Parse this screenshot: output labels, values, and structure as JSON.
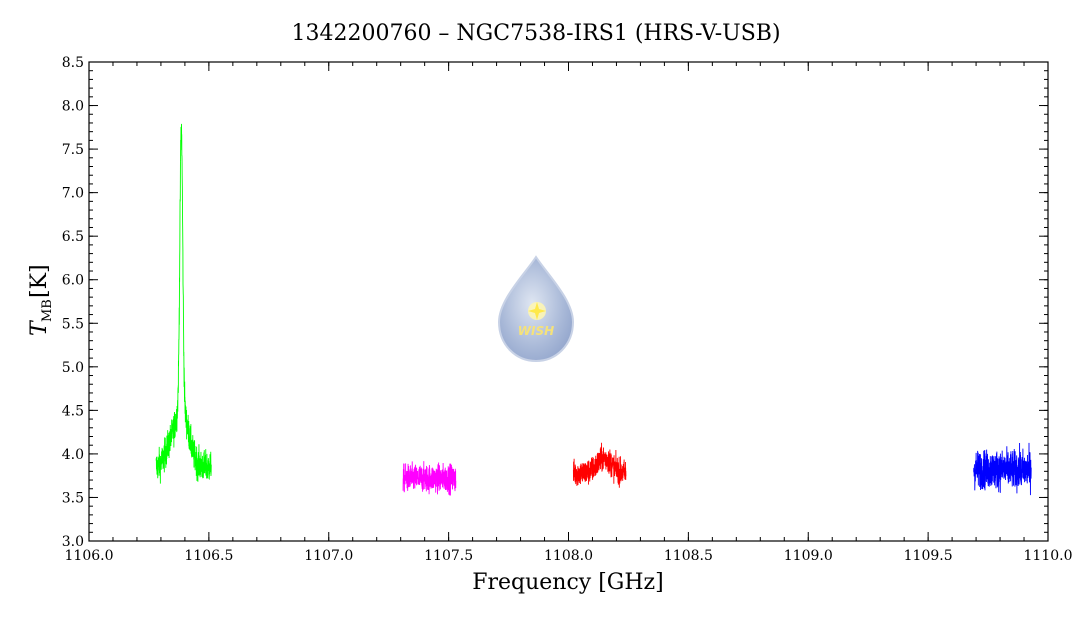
{
  "chart_data": {
    "type": "line",
    "title": "1342200760 – NGC7538-IRS1 (HRS-V-USB)",
    "xlabel": "Frequency [GHz]",
    "ylabel": "T",
    "ylabel_sub": "MB",
    "ylabel_unit": "[K]",
    "xlim": [
      1106.0,
      1110.0
    ],
    "ylim": [
      3.0,
      8.5
    ],
    "x_ticks": [
      1106.0,
      1106.5,
      1107.0,
      1107.5,
      1108.0,
      1108.5,
      1109.0,
      1109.5,
      1110.0
    ],
    "x_tick_labels": [
      "1106.0",
      "1106.5",
      "1107.0",
      "1107.5",
      "1108.0",
      "1108.5",
      "1109.0",
      "1109.5",
      "1110.0"
    ],
    "y_ticks": [
      3.0,
      3.5,
      4.0,
      4.5,
      5.0,
      5.5,
      6.0,
      6.5,
      7.0,
      7.5,
      8.0,
      8.5
    ],
    "y_tick_labels": [
      "3.0",
      "3.5",
      "4.0",
      "4.5",
      "5.0",
      "5.5",
      "6.0",
      "6.5",
      "7.0",
      "7.5",
      "8.0",
      "8.5"
    ],
    "grid": false,
    "series": [
      {
        "color": "#00ff00",
        "x_range": [
          1106.28,
          1106.51
        ],
        "baseline": 3.85,
        "noise": 0.18,
        "peak": {
          "x": 1106.385,
          "y": 8.0
        }
      },
      {
        "color": "#ff00ff",
        "x_range": [
          1107.31,
          1107.53
        ],
        "baseline": 3.72,
        "noise": 0.16
      },
      {
        "color": "#ff0000",
        "x_range": [
          1108.02,
          1108.24
        ],
        "baseline": 3.78,
        "noise": 0.15,
        "bump": {
          "x": 1108.15,
          "y": 3.95
        }
      },
      {
        "color": "#0000ff",
        "x_range": [
          1109.69,
          1109.93
        ],
        "baseline": 3.82,
        "noise": 0.22
      }
    ]
  },
  "logo": {
    "text": "WISH"
  }
}
